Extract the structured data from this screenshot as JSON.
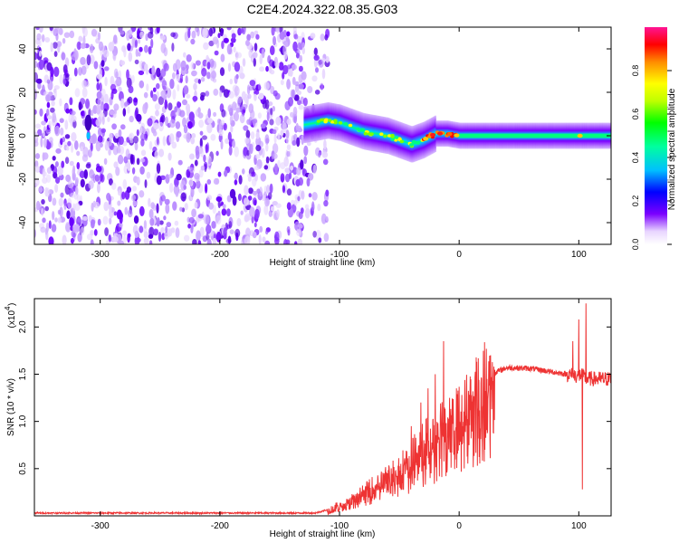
{
  "title": "C2E4.2024.322.08.35.G03",
  "chart_data": [
    {
      "type": "heatmap",
      "xlabel": "Height of straight line (km)",
      "ylabel": "Frequency (Hz)",
      "xlim": [
        -355,
        127
      ],
      "ylim": [
        -50,
        50
      ],
      "xticks": [
        -300,
        -200,
        -100,
        0,
        100
      ],
      "yticks": [
        -40,
        -20,
        0,
        20,
        40
      ],
      "colorbar": {
        "label": "Normalized spectral amplitude",
        "range": [
          0,
          1
        ],
        "ticks": [
          0.0,
          0.2,
          0.4,
          0.6,
          0.8
        ],
        "colormap": [
          "#ffffff",
          "#e8d5ff",
          "#7b00ff",
          "#0000ff",
          "#00bfff",
          "#00ff7f",
          "#7fff00",
          "#ffff00",
          "#ff7f00",
          "#ff0000",
          "#ff1493"
        ]
      },
      "regions": {
        "noise_region_x": [
          -355,
          -110
        ],
        "signal_track_x": [
          -130,
          127
        ],
        "signal_center_freq": [
          [
            -130,
            5
          ],
          [
            -110,
            7
          ],
          [
            -100,
            6
          ],
          [
            -90,
            4
          ],
          [
            -80,
            2
          ],
          [
            -70,
            1
          ],
          [
            -60,
            0
          ],
          [
            -50,
            -2
          ],
          [
            -40,
            -4
          ],
          [
            -30,
            -2
          ],
          [
            -20,
            1
          ],
          [
            -10,
            1
          ],
          [
            0,
            0
          ],
          [
            50,
            0
          ],
          [
            100,
            0
          ],
          [
            127,
            0
          ]
        ]
      }
    },
    {
      "type": "line",
      "xlabel": "Height of straight line (km)",
      "ylabel": "SNR (10 * v/v)",
      "scale_label": "(x10",
      "scale_exponent": "4",
      "xlim": [
        -355,
        127
      ],
      "ylim": [
        0,
        2.3
      ],
      "xticks": [
        -300,
        -200,
        -100,
        0,
        100
      ],
      "yticks": [
        0.5,
        1.0,
        1.5,
        2.0
      ],
      "line_color": "#ee3333",
      "envelope": {
        "x": [
          -355,
          -120,
          -100,
          -80,
          -60,
          -50,
          -40,
          -30,
          -20,
          -15,
          -10,
          0,
          10,
          20,
          30,
          40,
          60,
          80,
          90,
          100,
          102,
          105,
          110,
          127
        ],
        "y": [
          0.03,
          0.03,
          0.1,
          0.25,
          0.4,
          0.5,
          0.6,
          0.75,
          0.85,
          0.9,
          0.95,
          1.05,
          1.2,
          1.4,
          1.52,
          1.57,
          1.56,
          1.52,
          1.5,
          1.48,
          1.5,
          1.46,
          1.45,
          1.45
        ]
      },
      "spikes": [
        {
          "x": -60,
          "y": 0.45
        },
        {
          "x": -40,
          "y": 0.95
        },
        {
          "x": -32,
          "y": 1.2
        },
        {
          "x": -26,
          "y": 1.35
        },
        {
          "x": -20,
          "y": 1.5
        },
        {
          "x": -13,
          "y": 1.85
        },
        {
          "x": -8,
          "y": 1.25
        },
        {
          "x": 95,
          "y": 1.85
        },
        {
          "x": 100,
          "y": 2.08
        },
        {
          "x": 103,
          "y": 0.28
        },
        {
          "x": 106,
          "y": 2.25
        }
      ]
    }
  ]
}
